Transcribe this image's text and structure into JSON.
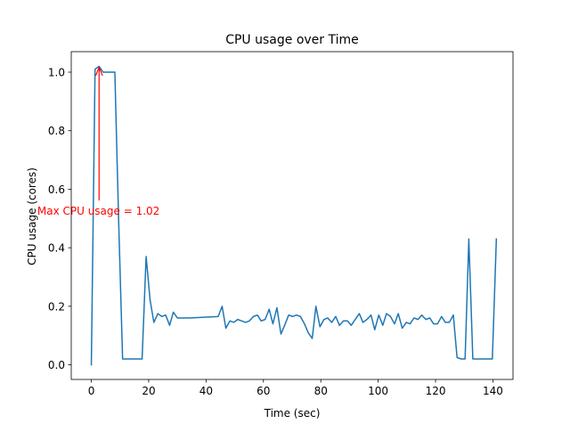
{
  "chart_data": {
    "type": "line",
    "title": "CPU usage over Time",
    "xlabel": "Time (sec)",
    "ylabel": "CPU usage (cores)",
    "xlim": [
      -7,
      147
    ],
    "ylim": [
      -0.05,
      1.07
    ],
    "grid": false,
    "xticks": [
      0,
      20,
      40,
      60,
      80,
      100,
      120,
      140
    ],
    "xtick_labels": [
      "0",
      "20",
      "40",
      "60",
      "80",
      "100",
      "120",
      "140"
    ],
    "yticks": [
      0.0,
      0.2,
      0.4,
      0.6,
      0.8,
      1.0
    ],
    "ytick_labels": [
      "0.0",
      "0.2",
      "0.4",
      "0.6",
      "0.8",
      "1.0"
    ],
    "series": [
      {
        "color": "#1f77b4",
        "x": [
          0,
          1.3,
          2.7,
          4.1,
          5.4,
          6.8,
          8.2,
          9.5,
          10.9,
          12.3,
          13.6,
          15.0,
          16.4,
          17.7,
          19.1,
          20.5,
          21.8,
          23.2,
          24.6,
          25.9,
          27.3,
          28.6,
          30.0,
          31.4,
          32.7,
          34.1,
          44.2,
          45.6,
          46.9,
          48.3,
          49.7,
          51.0,
          52.4,
          53.8,
          55.1,
          56.5,
          57.9,
          59.2,
          60.6,
          62.0,
          63.3,
          64.7,
          66.1,
          67.4,
          68.8,
          70.2,
          71.5,
          72.9,
          74.3,
          75.6,
          77.0,
          78.3,
          79.7,
          81.1,
          82.4,
          83.8,
          85.2,
          86.5,
          87.9,
          89.3,
          90.6,
          92.0,
          93.4,
          94.7,
          96.1,
          97.5,
          98.8,
          100.2,
          101.6,
          102.9,
          104.3,
          105.7,
          107.0,
          108.4,
          109.8,
          111.1,
          112.5,
          113.9,
          115.2,
          116.6,
          118.0,
          119.3,
          120.7,
          122.1,
          123.4,
          124.8,
          126.2,
          127.5,
          128.9,
          130.3,
          131.6,
          133.0,
          134.4,
          135.7,
          137.1,
          138.5,
          139.8,
          141.2
        ],
        "y": [
          0.0,
          1.01,
          1.02,
          1.0,
          1.0,
          1.0,
          1.0,
          0.5,
          0.02,
          0.02,
          0.02,
          0.02,
          0.02,
          0.02,
          0.37,
          0.22,
          0.145,
          0.175,
          0.165,
          0.17,
          0.135,
          0.18,
          0.16,
          0.16,
          0.16,
          0.16,
          0.165,
          0.2,
          0.125,
          0.15,
          0.145,
          0.155,
          0.15,
          0.145,
          0.15,
          0.165,
          0.17,
          0.15,
          0.155,
          0.19,
          0.14,
          0.195,
          0.105,
          0.135,
          0.17,
          0.165,
          0.17,
          0.165,
          0.14,
          0.11,
          0.09,
          0.2,
          0.13,
          0.155,
          0.16,
          0.145,
          0.165,
          0.135,
          0.15,
          0.15,
          0.135,
          0.155,
          0.175,
          0.145,
          0.155,
          0.17,
          0.12,
          0.17,
          0.135,
          0.175,
          0.165,
          0.14,
          0.175,
          0.125,
          0.145,
          0.14,
          0.16,
          0.155,
          0.17,
          0.155,
          0.16,
          0.14,
          0.14,
          0.165,
          0.145,
          0.145,
          0.17,
          0.025,
          0.02,
          0.02,
          0.43,
          0.02,
          0.02,
          0.02,
          0.02,
          0.02,
          0.02,
          0.43
        ]
      }
    ],
    "annotations": [
      {
        "text": "Max CPU usage = 1.02",
        "color": "#ff0000",
        "text_x": 2.5,
        "text_y": 0.525,
        "arrow_to_x": 2.7,
        "arrow_to_y": 1.02
      }
    ]
  }
}
